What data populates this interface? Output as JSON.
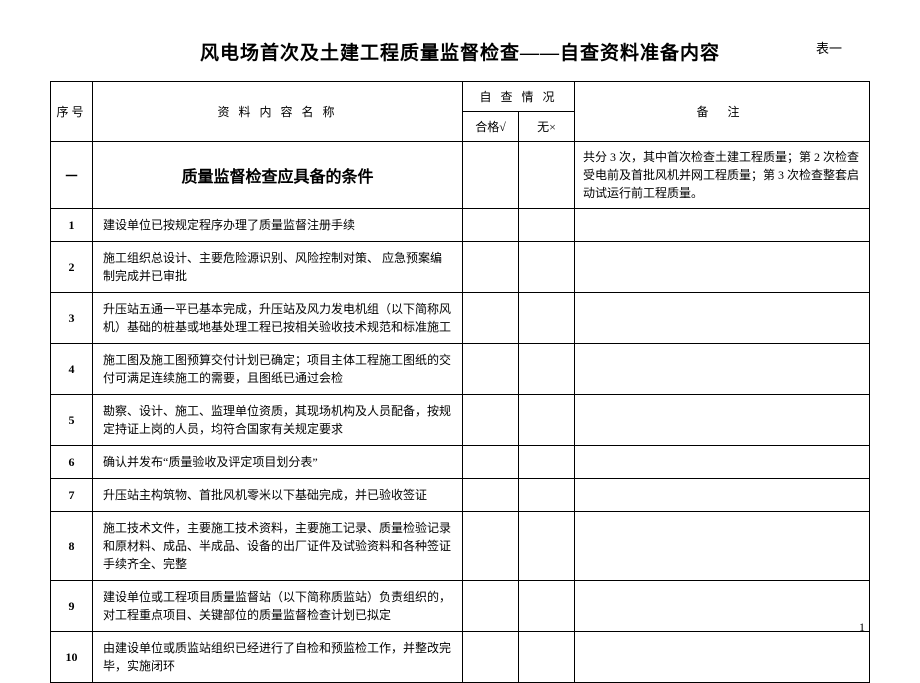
{
  "title": "风电场首次及土建工程质量监督检查——自查资料准备内容",
  "table_no": "表一",
  "page_no": "1",
  "headers": {
    "seq": "序号",
    "name": "资 料 内 容 名 称",
    "check": "自 查 情 况",
    "check_pass": "合格√",
    "check_fail": "无×",
    "remark": "备   注"
  },
  "section": {
    "seq": "一",
    "title": "质量监督检查应具备的条件",
    "remark": "共分 3 次，其中首次检查土建工程质量；第 2 次检查受电前及首批风机并网工程质量；第 3 次检查整套启动试运行前工程质量。"
  },
  "rows": [
    {
      "seq": "1",
      "name": "建设单位已按规定程序办理了质量监督注册手续"
    },
    {
      "seq": "2",
      "name": "施工组织总设计、主要危险源识别、风险控制对策、\n应急预案编制完成并已审批"
    },
    {
      "seq": "3",
      "name": "升压站五通一平已基本完成，升压站及风力发电机组（以下简称风机）基础的桩基或地基处理工程已按相关验收技术规范和标准施工"
    },
    {
      "seq": "4",
      "name": "施工图及施工图预算交付计划已确定；项目主体工程施工图纸的交付可满足连续施工的需要，且图纸已通过会检"
    },
    {
      "seq": "5",
      "name": "勘察、设计、施工、监理单位资质，其现场机构及人员配备，按规定持证上岗的人员，均符合国家有关规定要求"
    },
    {
      "seq": "6",
      "name": "确认并发布“质量验收及评定项目划分表”"
    },
    {
      "seq": "7",
      "name": "升压站主构筑物、首批风机零米以下基础完成，并已验收签证"
    },
    {
      "seq": "8",
      "name": "施工技术文件，主要施工技术资料，主要施工记录、质量检验记录和原材料、成品、半成品、设备的出厂证件及试验资料和各种签证手续齐全、完整"
    },
    {
      "seq": "9",
      "name": "建设单位或工程项目质量监督站（以下简称质监站）负责组织的，对工程重点项目、关键部位的质量监督检查计划已拟定"
    },
    {
      "seq": "10",
      "name": "由建设单位或质监站组织已经进行了自检和预监检工作，并整改完毕，实施闭环"
    }
  ]
}
